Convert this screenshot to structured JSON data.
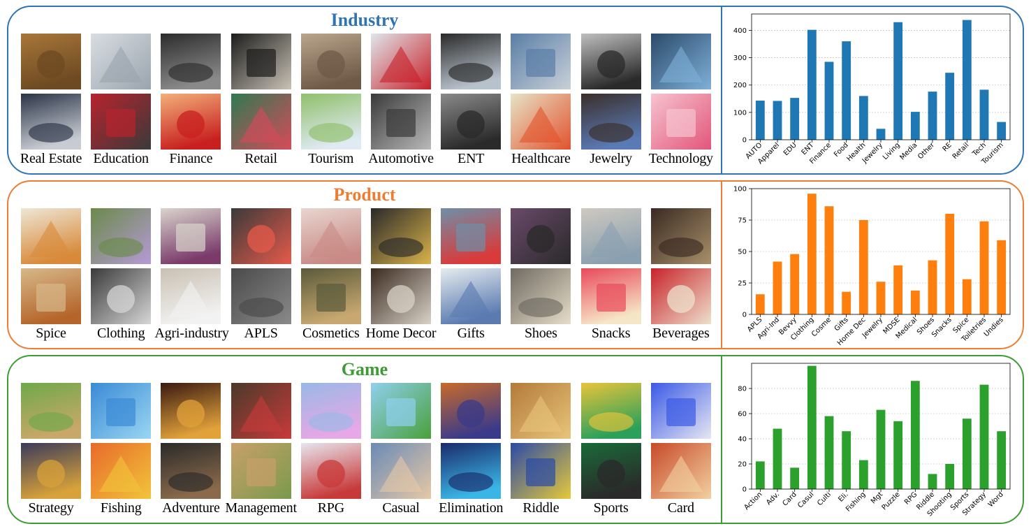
{
  "sections": [
    {
      "title": "Industry",
      "color": "#1f77b4",
      "border": "#2f74b5",
      "categories": [
        "Real Estate",
        "Education",
        "Finance",
        "Retail",
        "Tourism",
        "Automotive",
        "ENT",
        "Healthcare",
        "Jewelry",
        "Technology"
      ],
      "icons": [
        "shelves-photo",
        "campus-photo",
        "credit-card-photo",
        "watch-photo",
        "hotel-room-photo",
        "red-car-photo",
        "cutlery-photo",
        "factory-photo",
        "camera-photo",
        "laptop-photo",
        "door-panel-photo",
        "school-sign-photo",
        "vintage-car-photo",
        "shopping-bag-photo",
        "mountain-meadow-photo",
        "steering-wheel-photo",
        "costume-figure-photo",
        "pills-photo",
        "hair-clip-photo",
        "couple-illustration-photo"
      ],
      "tile_colors": [
        [
          "#a8763a",
          "#6d4a22"
        ],
        [
          "#d9dde2",
          "#9aa4ad"
        ],
        [
          "#2c2c2c",
          "#8a8a8a"
        ],
        [
          "#1c1c1c",
          "#c9c2b5"
        ],
        [
          "#b9a48c",
          "#6f5a48"
        ],
        [
          "#dfe6ea",
          "#c8202a"
        ],
        [
          "#2a2a2a",
          "#b8c2cc"
        ],
        [
          "#5a7ea6",
          "#c8d0d8"
        ],
        [
          "#bfbfbf",
          "#2a2a2a"
        ],
        [
          "#2b4a6a",
          "#7fb0d8"
        ],
        [
          "#2a3346",
          "#c8ccd2"
        ],
        [
          "#b8232d",
          "#3a3a3a"
        ],
        [
          "#f2b07a",
          "#c8201f"
        ],
        [
          "#2f7a52",
          "#d74a5a"
        ],
        [
          "#8fbf6a",
          "#dfeaf2"
        ],
        [
          "#3a3a3a",
          "#b9b9b9"
        ],
        [
          "#8a8a8a",
          "#2a2a2a"
        ],
        [
          "#e7e3c8",
          "#e2522c"
        ],
        [
          "#3a2e2a",
          "#5a7ab5"
        ],
        [
          "#f6c3cf",
          "#e2567a"
        ]
      ],
      "chart_data": {
        "type": "bar",
        "categories": [
          "AUTO",
          "Apparel",
          "EDU",
          "ENT",
          "Finance",
          "Food",
          "Health",
          "Jewelry",
          "Living",
          "Media",
          "Other",
          "RE",
          "Retail",
          "Tech",
          "Tourism"
        ],
        "values": [
          143,
          142,
          153,
          402,
          285,
          360,
          160,
          40,
          430,
          102,
          176,
          245,
          438,
          183,
          65
        ],
        "yticks": [
          0,
          100,
          200,
          300,
          400
        ],
        "ylim": [
          0,
          460
        ],
        "grid": true
      }
    },
    {
      "title": "Product",
      "color": "#ff7f0e",
      "border": "#ed7d31",
      "categories": [
        "Spice",
        "Clothing",
        "Agri-industry",
        "APLS",
        "Cosmetics",
        "Home Decor",
        "Gifts",
        "Shoes",
        "Snacks",
        "Beverages"
      ],
      "icons": [
        "salad-photo",
        "model-photo",
        "bottles-photo",
        "pan-photo",
        "hand-cream-photo",
        "liquor-bottles-photo",
        "toy-motorbike-photo",
        "sneakers-photo",
        "jar-photo",
        "tea-box-photo",
        "noodles-photo",
        "jeans-photo",
        "farmer-photo",
        "knee-pads-photo",
        "oils-photo",
        "phone-bag-photo",
        "toy-rose-photo",
        "knit-shoe-photo",
        "candied-fruit-photo",
        "mug-photo"
      ],
      "tile_colors": [
        [
          "#eee6d6",
          "#d88a3a"
        ],
        [
          "#6a8a4a",
          "#b69ad6"
        ],
        [
          "#d9d4cc",
          "#7a3a6a"
        ],
        [
          "#3a3a3a",
          "#e65a4a"
        ],
        [
          "#e8d6d0",
          "#c98a86"
        ],
        [
          "#2a2a2a",
          "#d9b24a"
        ],
        [
          "#6f8fa8",
          "#d93a3a"
        ],
        [
          "#6a4a6a",
          "#2a2a2a"
        ],
        [
          "#cfc9c0",
          "#8aa0b0"
        ],
        [
          "#3a2a22",
          "#a8906a"
        ],
        [
          "#d7b88a",
          "#b5652a"
        ],
        [
          "#3a3a3a",
          "#d6d6d6"
        ],
        [
          "#c9c0b2",
          "#f2f2f2"
        ],
        [
          "#4a4a4a",
          "#8a8a8a"
        ],
        [
          "#5a5a3a",
          "#c8a870"
        ],
        [
          "#3b2a20",
          "#d8d2c6"
        ],
        [
          "#e6ecef",
          "#5a7ab0"
        ],
        [
          "#6f6a62",
          "#e6ddc8"
        ],
        [
          "#e84a5a",
          "#f6e6c8"
        ],
        [
          "#c8232a",
          "#eee0cc"
        ]
      ],
      "chart_data": {
        "type": "bar",
        "categories": [
          "APLS",
          "Agri-Ind",
          "Bevvy",
          "Clothing",
          "Cosme",
          "Gifts",
          "Home Dec",
          "Jewelry",
          "MDSE",
          "Medical",
          "Shoes",
          "Snacks",
          "Spice",
          "Toiletries",
          "Undies"
        ],
        "values": [
          16,
          42,
          48,
          96,
          86,
          18,
          75,
          26,
          39,
          19,
          43,
          80,
          28,
          74,
          59
        ],
        "yticks": [
          0,
          25,
          50,
          75,
          100
        ],
        "ylim": [
          0,
          100
        ],
        "grid": true
      }
    },
    {
      "title": "Game",
      "color": "#2ca02c",
      "border": "#3e9c35",
      "categories": [
        "Strategy",
        "Fishing",
        "Adventure",
        "Management",
        "RPG",
        "Casual",
        "Elimination",
        "Riddle",
        "Sports",
        "Card"
      ],
      "icons": [
        "tower-game-screen",
        "mermaid-game-screen",
        "battle-game-screen",
        "warrior-game-screen",
        "fairy-game-screen",
        "race-game-screen",
        "match3-game-screen",
        "block-puzzle-screen",
        "table-game-screen",
        "card-table-screen",
        "arena-game-screen",
        "fish-shooter-screen",
        "dungeon-game-screen",
        "village-game-screen",
        "stickman-game-screen",
        "tiles-game-screen",
        "tetris-game-screen",
        "fruit-puzzle-screen",
        "billiards-game-screen",
        "poker-game-screen"
      ],
      "tile_colors": [
        [
          "#6fa84a",
          "#c8a86a"
        ],
        [
          "#3a8ad6",
          "#9ad6f2"
        ],
        [
          "#3a1a12",
          "#e2a23a"
        ],
        [
          "#4a3a2a",
          "#c83a3a"
        ],
        [
          "#9ab8e6",
          "#e6a8e6"
        ],
        [
          "#8fd0ef",
          "#4aa03a"
        ],
        [
          "#c86a2a",
          "#3a3a8a"
        ],
        [
          "#b47a3a",
          "#e8c47a"
        ],
        [
          "#e8c43a",
          "#2aa05a"
        ],
        [
          "#3a5ae6",
          "#e6e6f2"
        ],
        [
          "#3a3a5a",
          "#d8a23a"
        ],
        [
          "#e86a2a",
          "#f2c43a"
        ],
        [
          "#2a2a2a",
          "#8a6a4a"
        ],
        [
          "#c8a06a",
          "#7a9a4a"
        ],
        [
          "#e6e6ee",
          "#c83a3a"
        ],
        [
          "#6a8ab6",
          "#e6c8a6"
        ],
        [
          "#1a2a6a",
          "#3ab6e6"
        ],
        [
          "#2a4aa6",
          "#e6c83a"
        ],
        [
          "#1a6a3a",
          "#2a2a2a"
        ],
        [
          "#c84a2a",
          "#f2d0a0"
        ]
      ],
      "chart_data": {
        "type": "bar",
        "categories": [
          "Action",
          "Adv.",
          "Card",
          "Casul",
          "Culti",
          "Eli.",
          "Fishing",
          "Mgt",
          "Puzzle",
          "RPG",
          "Riddle",
          "Shooting",
          "Sports",
          "Strategy",
          "Word"
        ],
        "values": [
          22,
          48,
          17,
          98,
          58,
          46,
          23,
          63,
          54,
          86,
          12,
          20,
          56,
          83,
          46
        ],
        "yticks": [
          0,
          20,
          40,
          60,
          80
        ],
        "ylim": [
          0,
          100
        ],
        "grid": true
      }
    }
  ]
}
